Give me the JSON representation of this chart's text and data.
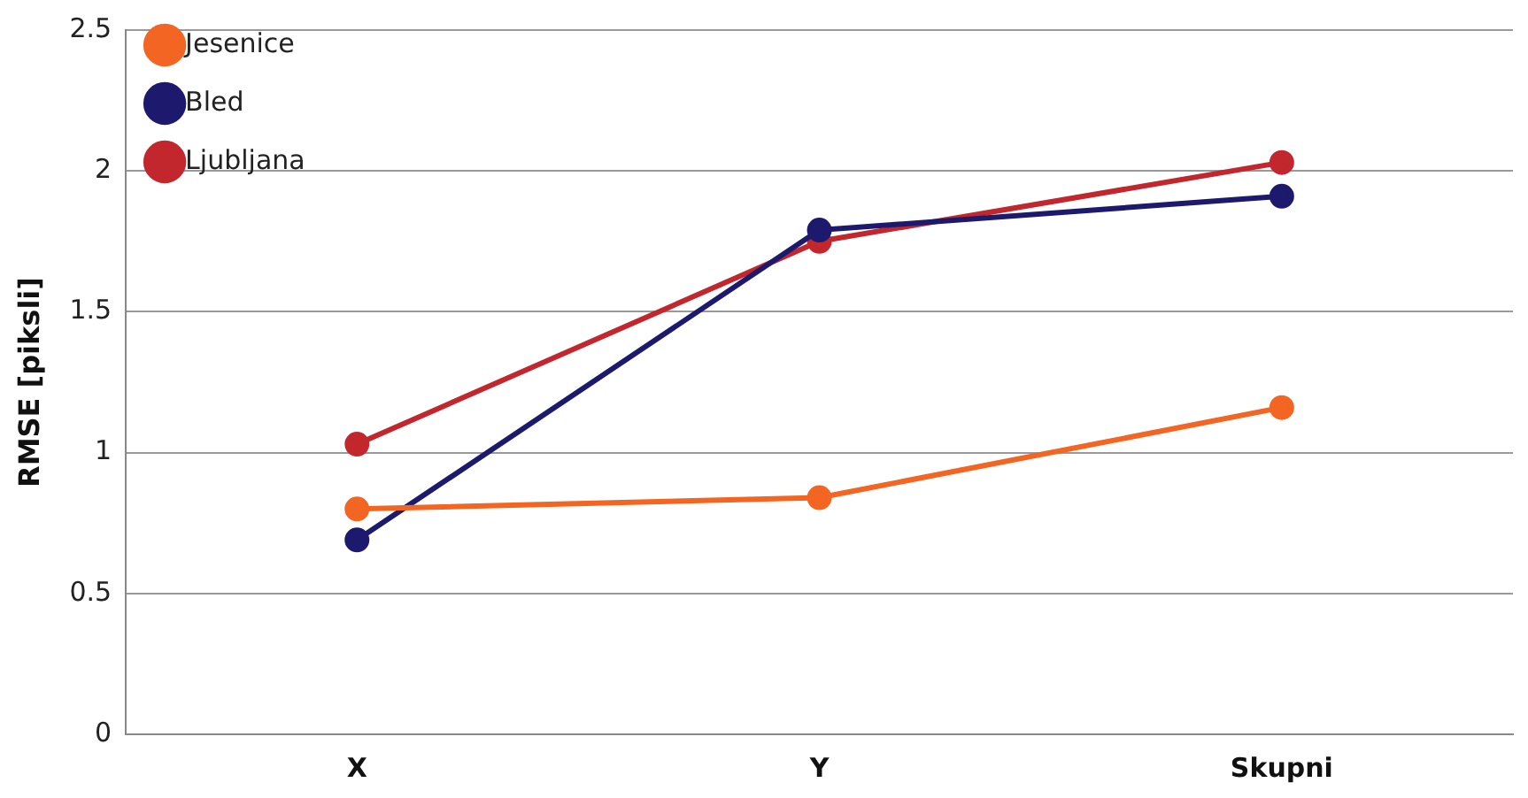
{
  "chart_data": {
    "type": "line",
    "ylabel": "RMSE [piksli]",
    "categories": [
      "X",
      "Y",
      "Skupni"
    ],
    "series": [
      {
        "name": "Jesenice",
        "color": "#f26522",
        "values": [
          0.8,
          0.84,
          1.16
        ]
      },
      {
        "name": "Bled",
        "color": "#1d1a6e",
        "values": [
          0.69,
          1.79,
          1.91
        ]
      },
      {
        "name": "Ljubljana",
        "color": "#c1272d",
        "values": [
          1.03,
          1.75,
          2.03
        ]
      }
    ],
    "ylim": [
      0,
      2.5
    ],
    "yticks": [
      0,
      0.5,
      1,
      1.5,
      2,
      2.5
    ],
    "grid": "y",
    "legend": "top left",
    "marker": "circle",
    "line_style": "solid"
  }
}
